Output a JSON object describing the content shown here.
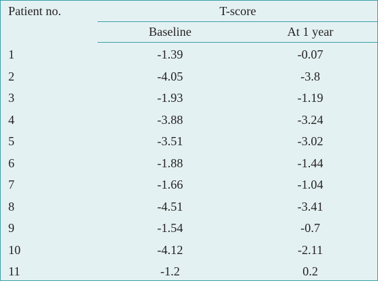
{
  "header": {
    "patient_col": "Patient no.",
    "group_label": "T-score",
    "baseline_col": "Baseline",
    "year_col": "At 1 year"
  },
  "rows": [
    {
      "patient": "1",
      "baseline": "-1.39",
      "year": "-0.07"
    },
    {
      "patient": "2",
      "baseline": "-4.05",
      "year": "-3.8"
    },
    {
      "patient": "3",
      "baseline": "-1.93",
      "year": "-1.19"
    },
    {
      "patient": "4",
      "baseline": "-3.88",
      "year": "-3.24"
    },
    {
      "patient": "5",
      "baseline": "-3.51",
      "year": "-3.02"
    },
    {
      "patient": "6",
      "baseline": "-1.88",
      "year": "-1.44"
    },
    {
      "patient": "7",
      "baseline": "-1.66",
      "year": "-1.04"
    },
    {
      "patient": "8",
      "baseline": "-4.51",
      "year": "-3.41"
    },
    {
      "patient": "9",
      "baseline": "-1.54",
      "year": "-0.7"
    },
    {
      "patient": "10",
      "baseline": "-4.12",
      "year": "-2.11"
    },
    {
      "patient": "11",
      "baseline": "-1.2",
      "year": "0.2"
    }
  ],
  "colors": {
    "background": "#e4f1f2",
    "rule": "#3aa0aa",
    "text": "#231f20"
  }
}
